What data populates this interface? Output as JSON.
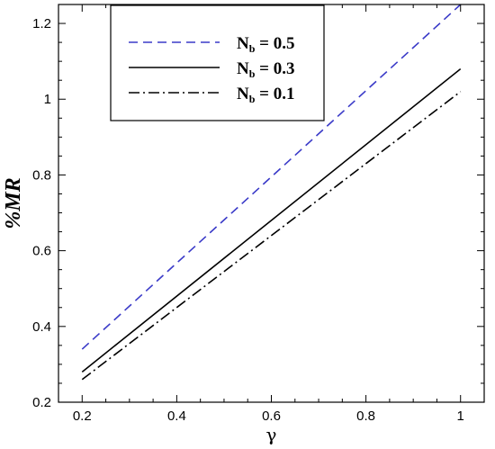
{
  "chart_data": {
    "type": "line",
    "xlabel": "γ",
    "ylabel": "%MR",
    "xlim": [
      0.15,
      1.05
    ],
    "ylim": [
      0.2,
      1.25
    ],
    "x_ticks": [
      "0.2",
      "0.4",
      "0.6",
      "0.8",
      "1"
    ],
    "y_ticks": [
      "0.2",
      "0.4",
      "0.6",
      "0.8",
      "1",
      "1.2"
    ],
    "grid": false,
    "legend_position": "top-left",
    "series": [
      {
        "name": "N_b = 0.5",
        "label_main": "N",
        "label_sub": "b",
        "label_rest": " = 0.5",
        "color": "#3a3ac8",
        "style": "dashed",
        "x": [
          0.2,
          1.0
        ],
        "y": [
          0.34,
          1.25
        ]
      },
      {
        "name": "N_b = 0.3",
        "label_main": "N",
        "label_sub": "b",
        "label_rest": " = 0.3",
        "color": "#000000",
        "style": "solid",
        "x": [
          0.2,
          1.0
        ],
        "y": [
          0.28,
          1.08
        ]
      },
      {
        "name": "N_b = 0.1",
        "label_main": "N",
        "label_sub": "b",
        "label_rest": " = 0.1",
        "color": "#000000",
        "style": "dashdot",
        "x": [
          0.2,
          1.0
        ],
        "y": [
          0.26,
          1.02
        ]
      }
    ]
  }
}
